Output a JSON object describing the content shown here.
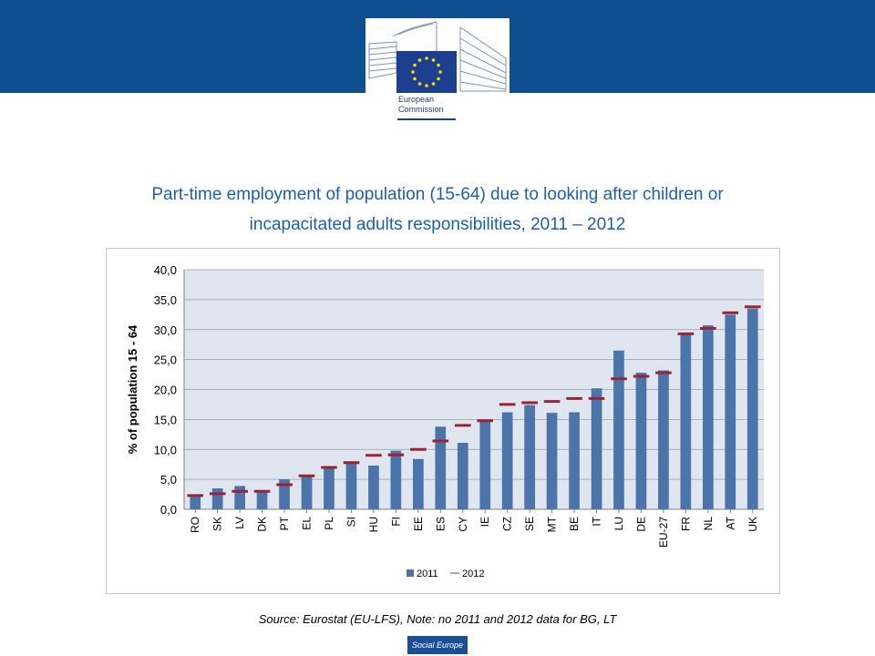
{
  "header": {
    "logo_line1": "European",
    "logo_line2": "Commission"
  },
  "page_title_line1": "Part-time employment of population (15-64) due to looking after children or",
  "page_title_line2": "incapacitated adults responsibilities, 2011 – 2012",
  "source_note": "Source: Eurostat (EU-LFS), Note: no 2011 and 2012 data for BG, LT",
  "footer_badge": "Social Europe",
  "colors": {
    "banner": "#0e4f92",
    "bar_2011": "#4a74aa",
    "marker_2012": "#9b2335",
    "plot_bg": "#dfe6f0",
    "title": "#1f5fa8"
  },
  "chart_data": {
    "type": "bar",
    "title": "",
    "xlabel": "",
    "ylabel": "% of population 15 - 64",
    "ylim": [
      0,
      40
    ],
    "yticks": [
      "0,0",
      "5,0",
      "10,0",
      "15,0",
      "20,0",
      "25,0",
      "30,0",
      "35,0",
      "40,0"
    ],
    "grid": true,
    "legend_position": "bottom",
    "categories": [
      "RO",
      "SK",
      "LV",
      "DK",
      "PT",
      "EL",
      "PL",
      "SI",
      "HU",
      "FI",
      "EE",
      "ES",
      "CY",
      "IE",
      "CZ",
      "SE",
      "MT",
      "BE",
      "IT",
      "LU",
      "DE",
      "EU-27",
      "FR",
      "NL",
      "AT",
      "UK"
    ],
    "series": [
      {
        "name": "2011",
        "style": "bar",
        "values": [
          2.3,
          3.5,
          3.9,
          2.9,
          5.0,
          5.7,
          7.0,
          7.6,
          7.3,
          9.8,
          8.4,
          13.8,
          11.1,
          14.8,
          16.2,
          17.4,
          16.1,
          16.2,
          20.2,
          26.5,
          22.8,
          23.2,
          29.2,
          30.7,
          32.5,
          33.5
        ]
      },
      {
        "name": "2012",
        "style": "marker",
        "values": [
          2.3,
          2.6,
          3.0,
          3.0,
          4.1,
          5.6,
          7.0,
          7.8,
          9.0,
          9.1,
          10.0,
          11.4,
          14.0,
          14.8,
          17.5,
          17.8,
          18.0,
          18.5,
          18.5,
          21.8,
          22.2,
          22.8,
          29.3,
          30.2,
          32.8,
          33.8
        ]
      }
    ]
  }
}
